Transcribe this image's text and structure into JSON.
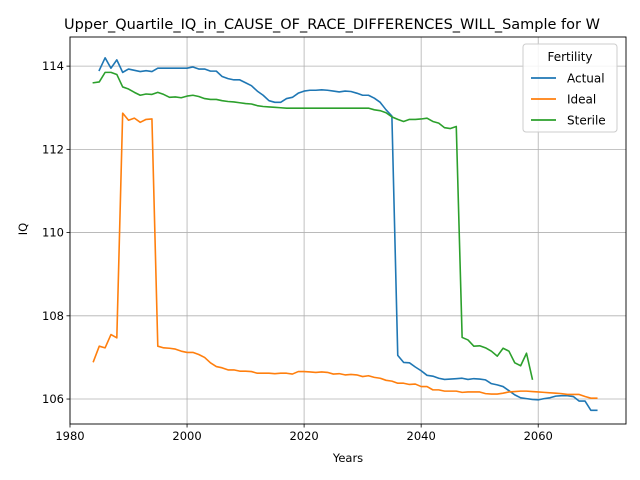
{
  "chart_data": {
    "type": "line",
    "title": "Upper_Quartile_IQ_in_CAUSE_OF_RACE_DIFFERENCES_WILL_Sample for W",
    "xlabel": "Years",
    "ylabel": "IQ",
    "xlim": [
      1980,
      2075
    ],
    "ylim": [
      105.4,
      114.7
    ],
    "xticks": [
      1980,
      2000,
      2020,
      2040,
      2060
    ],
    "yticks": [
      106,
      108,
      110,
      112,
      114
    ],
    "grid": true,
    "legend": {
      "title": "Fertility",
      "placement": "upper right"
    },
    "series": [
      {
        "name": "Actual",
        "color": "#1f77b4",
        "points": [
          [
            1985,
            113.9
          ],
          [
            1986,
            114.2
          ],
          [
            1987,
            113.95
          ],
          [
            1988,
            114.15
          ],
          [
            1989,
            113.85
          ],
          [
            1990,
            113.93
          ],
          [
            1991,
            113.9
          ],
          [
            1992,
            113.87
          ],
          [
            1993,
            113.89
          ],
          [
            1994,
            113.87
          ],
          [
            1995,
            113.95
          ],
          [
            1996,
            113.95
          ],
          [
            1997,
            113.95
          ],
          [
            1998,
            113.95
          ],
          [
            1999,
            113.95
          ],
          [
            2000,
            113.95
          ],
          [
            2001,
            113.98
          ],
          [
            2002,
            113.93
          ],
          [
            2003,
            113.93
          ],
          [
            2004,
            113.88
          ],
          [
            2005,
            113.88
          ],
          [
            2006,
            113.75
          ],
          [
            2007,
            113.7
          ],
          [
            2008,
            113.67
          ],
          [
            2009,
            113.67
          ],
          [
            2010,
            113.6
          ],
          [
            2011,
            113.53
          ],
          [
            2012,
            113.4
          ],
          [
            2013,
            113.3
          ],
          [
            2014,
            113.17
          ],
          [
            2015,
            113.13
          ],
          [
            2016,
            113.13
          ],
          [
            2017,
            113.22
          ],
          [
            2018,
            113.25
          ],
          [
            2019,
            113.35
          ],
          [
            2020,
            113.4
          ],
          [
            2021,
            113.42
          ],
          [
            2022,
            113.42
          ],
          [
            2023,
            113.43
          ],
          [
            2024,
            113.42
          ],
          [
            2025,
            113.4
          ],
          [
            2026,
            113.38
          ],
          [
            2027,
            113.4
          ],
          [
            2028,
            113.39
          ],
          [
            2029,
            113.35
          ],
          [
            2030,
            113.3
          ],
          [
            2031,
            113.3
          ],
          [
            2032,
            113.23
          ],
          [
            2033,
            113.13
          ],
          [
            2034,
            112.95
          ],
          [
            2035,
            112.8
          ],
          [
            2036,
            107.05
          ],
          [
            2037,
            106.88
          ],
          [
            2038,
            106.87
          ],
          [
            2039,
            106.77
          ],
          [
            2040,
            106.68
          ],
          [
            2041,
            106.57
          ],
          [
            2042,
            106.55
          ],
          [
            2043,
            106.5
          ],
          [
            2044,
            106.47
          ],
          [
            2045,
            106.48
          ],
          [
            2046,
            106.49
          ],
          [
            2047,
            106.5
          ],
          [
            2048,
            106.47
          ],
          [
            2049,
            106.49
          ],
          [
            2050,
            106.48
          ],
          [
            2051,
            106.46
          ],
          [
            2052,
            106.37
          ],
          [
            2053,
            106.34
          ],
          [
            2054,
            106.3
          ],
          [
            2055,
            106.2
          ],
          [
            2056,
            106.1
          ],
          [
            2057,
            106.03
          ],
          [
            2058,
            106.01
          ],
          [
            2059,
            105.99
          ],
          [
            2060,
            105.98
          ],
          [
            2061,
            106.01
          ],
          [
            2062,
            106.03
          ],
          [
            2063,
            106.07
          ],
          [
            2064,
            106.08
          ],
          [
            2065,
            106.08
          ],
          [
            2066,
            106.06
          ],
          [
            2067,
            105.95
          ],
          [
            2068,
            105.95
          ],
          [
            2069,
            105.73
          ],
          [
            2070,
            105.73
          ]
        ]
      },
      {
        "name": "Ideal",
        "color": "#ff7f0e",
        "points": [
          [
            1984,
            106.9
          ],
          [
            1985,
            107.27
          ],
          [
            1986,
            107.23
          ],
          [
            1987,
            107.55
          ],
          [
            1988,
            107.47
          ],
          [
            1989,
            112.87
          ],
          [
            1990,
            112.7
          ],
          [
            1991,
            112.75
          ],
          [
            1992,
            112.65
          ],
          [
            1993,
            112.72
          ],
          [
            1994,
            112.73
          ],
          [
            1995,
            107.27
          ],
          [
            1996,
            107.23
          ],
          [
            1997,
            107.22
          ],
          [
            1998,
            107.2
          ],
          [
            1999,
            107.15
          ],
          [
            2000,
            107.12
          ],
          [
            2001,
            107.12
          ],
          [
            2002,
            107.07
          ],
          [
            2003,
            107.0
          ],
          [
            2004,
            106.87
          ],
          [
            2005,
            106.78
          ],
          [
            2006,
            106.75
          ],
          [
            2007,
            106.7
          ],
          [
            2008,
            106.7
          ],
          [
            2009,
            106.67
          ],
          [
            2010,
            106.67
          ],
          [
            2011,
            106.66
          ],
          [
            2012,
            106.62
          ],
          [
            2013,
            106.62
          ],
          [
            2014,
            106.62
          ],
          [
            2015,
            106.61
          ],
          [
            2016,
            106.62
          ],
          [
            2017,
            106.62
          ],
          [
            2018,
            106.6
          ],
          [
            2019,
            106.66
          ],
          [
            2020,
            106.66
          ],
          [
            2021,
            106.65
          ],
          [
            2022,
            106.64
          ],
          [
            2023,
            106.65
          ],
          [
            2024,
            106.64
          ],
          [
            2025,
            106.6
          ],
          [
            2026,
            106.61
          ],
          [
            2027,
            106.58
          ],
          [
            2028,
            106.59
          ],
          [
            2029,
            106.58
          ],
          [
            2030,
            106.54
          ],
          [
            2031,
            106.56
          ],
          [
            2032,
            106.52
          ],
          [
            2033,
            106.5
          ],
          [
            2034,
            106.45
          ],
          [
            2035,
            106.43
          ],
          [
            2036,
            106.38
          ],
          [
            2037,
            106.38
          ],
          [
            2038,
            106.35
          ],
          [
            2039,
            106.36
          ],
          [
            2040,
            106.3
          ],
          [
            2041,
            106.3
          ],
          [
            2042,
            106.22
          ],
          [
            2043,
            106.22
          ],
          [
            2044,
            106.19
          ],
          [
            2045,
            106.19
          ],
          [
            2046,
            106.19
          ],
          [
            2047,
            106.16
          ],
          [
            2048,
            106.17
          ],
          [
            2049,
            106.17
          ],
          [
            2050,
            106.17
          ],
          [
            2051,
            106.13
          ],
          [
            2052,
            106.12
          ],
          [
            2053,
            106.12
          ],
          [
            2054,
            106.14
          ],
          [
            2055,
            106.17
          ],
          [
            2056,
            106.18
          ],
          [
            2057,
            106.19
          ],
          [
            2058,
            106.19
          ],
          [
            2059,
            106.18
          ],
          [
            2060,
            106.17
          ],
          [
            2061,
            106.16
          ],
          [
            2062,
            106.15
          ],
          [
            2063,
            106.14
          ],
          [
            2064,
            106.13
          ],
          [
            2065,
            106.11
          ],
          [
            2066,
            106.11
          ],
          [
            2067,
            106.11
          ],
          [
            2068,
            106.06
          ],
          [
            2069,
            106.02
          ],
          [
            2070,
            106.02
          ]
        ]
      },
      {
        "name": "Sterile",
        "color": "#2ca02c",
        "points": [
          [
            1984,
            113.6
          ],
          [
            1985,
            113.62
          ],
          [
            1986,
            113.85
          ],
          [
            1987,
            113.85
          ],
          [
            1988,
            113.8
          ],
          [
            1989,
            113.5
          ],
          [
            1990,
            113.45
          ],
          [
            1991,
            113.37
          ],
          [
            1992,
            113.3
          ],
          [
            1993,
            113.33
          ],
          [
            1994,
            113.32
          ],
          [
            1995,
            113.37
          ],
          [
            1996,
            113.32
          ],
          [
            1997,
            113.25
          ],
          [
            1998,
            113.26
          ],
          [
            1999,
            113.24
          ],
          [
            2000,
            113.28
          ],
          [
            2001,
            113.3
          ],
          [
            2002,
            113.27
          ],
          [
            2003,
            113.22
          ],
          [
            2004,
            113.2
          ],
          [
            2005,
            113.2
          ],
          [
            2006,
            113.17
          ],
          [
            2007,
            113.15
          ],
          [
            2008,
            113.14
          ],
          [
            2009,
            113.12
          ],
          [
            2010,
            113.1
          ],
          [
            2011,
            113.09
          ],
          [
            2012,
            113.05
          ],
          [
            2013,
            113.03
          ],
          [
            2014,
            113.02
          ],
          [
            2015,
            113.01
          ],
          [
            2016,
            113.0
          ],
          [
            2017,
            112.99
          ],
          [
            2018,
            112.99
          ],
          [
            2019,
            112.99
          ],
          [
            2020,
            112.99
          ],
          [
            2021,
            112.99
          ],
          [
            2022,
            112.99
          ],
          [
            2023,
            112.99
          ],
          [
            2024,
            112.99
          ],
          [
            2025,
            112.99
          ],
          [
            2026,
            112.99
          ],
          [
            2027,
            112.99
          ],
          [
            2028,
            112.99
          ],
          [
            2029,
            112.99
          ],
          [
            2030,
            112.99
          ],
          [
            2031,
            112.99
          ],
          [
            2032,
            112.95
          ],
          [
            2033,
            112.93
          ],
          [
            2034,
            112.88
          ],
          [
            2035,
            112.78
          ],
          [
            2036,
            112.72
          ],
          [
            2037,
            112.67
          ],
          [
            2038,
            112.72
          ],
          [
            2039,
            112.72
          ],
          [
            2040,
            112.73
          ],
          [
            2041,
            112.75
          ],
          [
            2042,
            112.67
          ],
          [
            2043,
            112.63
          ],
          [
            2044,
            112.52
          ],
          [
            2045,
            112.5
          ],
          [
            2046,
            112.55
          ],
          [
            2047,
            107.48
          ],
          [
            2048,
            107.42
          ],
          [
            2049,
            107.27
          ],
          [
            2050,
            107.28
          ],
          [
            2051,
            107.23
          ],
          [
            2052,
            107.15
          ],
          [
            2053,
            107.03
          ],
          [
            2054,
            107.22
          ],
          [
            2055,
            107.15
          ],
          [
            2056,
            106.87
          ],
          [
            2057,
            106.8
          ],
          [
            2058,
            107.1
          ],
          [
            2059,
            106.48
          ]
        ]
      }
    ]
  }
}
